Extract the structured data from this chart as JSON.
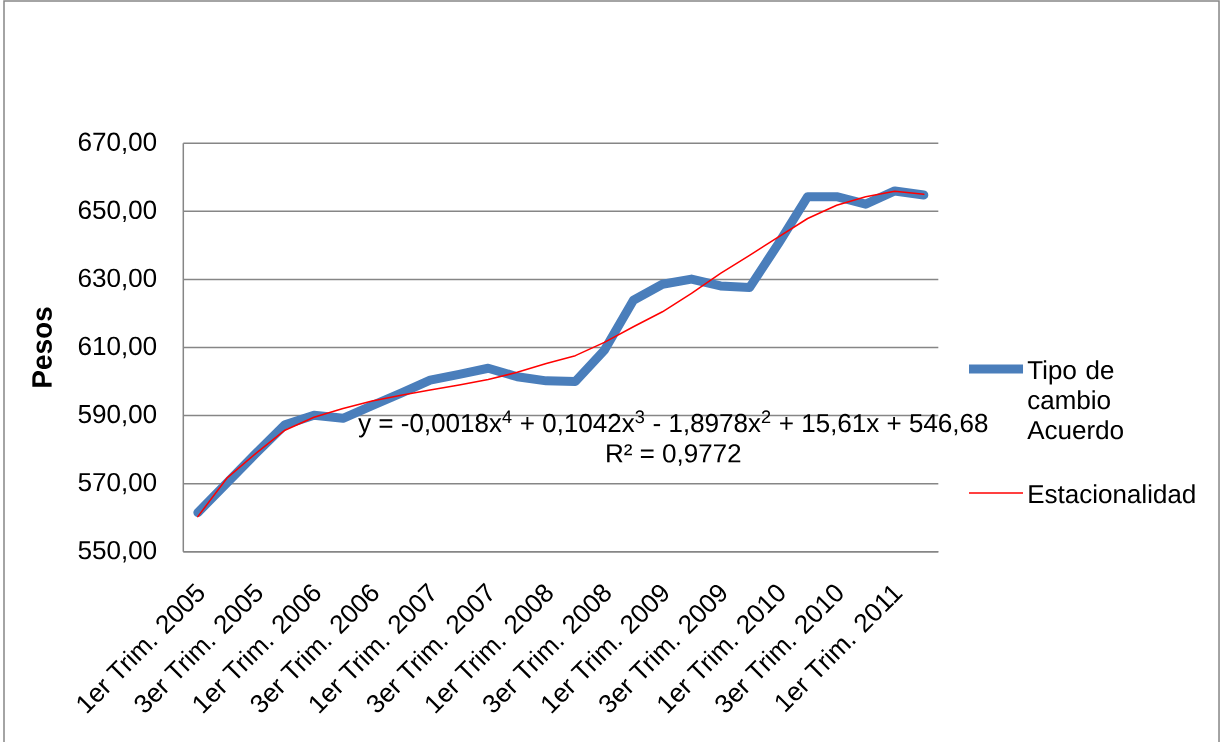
{
  "chart_data": {
    "type": "line",
    "categories": [
      "1er Trim. 2005",
      null,
      "3er Trim. 2005",
      null,
      "1er Trim. 2006",
      null,
      "3er Trim. 2006",
      null,
      "1er Trim. 2007",
      null,
      "3er Trim. 2007",
      null,
      "1er Trim. 2008",
      null,
      "3er Trim. 2008",
      null,
      "1er Trim. 2009",
      null,
      "3er Trim. 2009",
      null,
      "1er Trim. 2010",
      null,
      "3er Trim. 2010",
      null,
      "1er Trim. 2011",
      null
    ],
    "series": [
      {
        "name": "Tipo de cambio Acuerdo",
        "color": "#4a7ebb",
        "values": [
          561.5,
          570.2,
          578.9,
          587.3,
          590.1,
          589.2,
          592.9,
          596.6,
          600.4,
          602.1,
          603.9,
          601.4,
          600.2,
          600.0,
          609.2,
          623.9,
          628.6,
          630.1,
          628.1,
          627.6,
          640.6,
          654.3,
          654.3,
          652.1,
          656.0,
          654.8
        ]
      },
      {
        "name": "Estacionalidad",
        "color": "#ff0000",
        "values": [
          560.3,
          571.6,
          578.9,
          585.7,
          589.5,
          592.1,
          594.3,
          596.0,
          597.5,
          599.0,
          600.6,
          602.7,
          605.3,
          607.6,
          611.5,
          616.1,
          620.5,
          625.9,
          631.8,
          637.1,
          642.5,
          647.9,
          651.8,
          654.3,
          655.9,
          655.0
        ]
      }
    ],
    "ylabel": "Pesos",
    "ylim": [
      550,
      670
    ],
    "yticks": [
      {
        "value": 550,
        "label": "550,00"
      },
      {
        "value": 570,
        "label": "570,00"
      },
      {
        "value": 590,
        "label": "590,00"
      },
      {
        "value": 610,
        "label": "610,00"
      },
      {
        "value": 630,
        "label": "630,00"
      },
      {
        "value": 650,
        "label": "650,00"
      },
      {
        "value": 670,
        "label": "670,00"
      }
    ],
    "grid": "y",
    "legend": "right",
    "annotations": [
      "y = -0,0018x$^{4}$ + 0,1042x$^{3}$ - 1,8978x$^{2}$ + 15,61x + 546,68",
      "R² = 0,9772"
    ]
  }
}
